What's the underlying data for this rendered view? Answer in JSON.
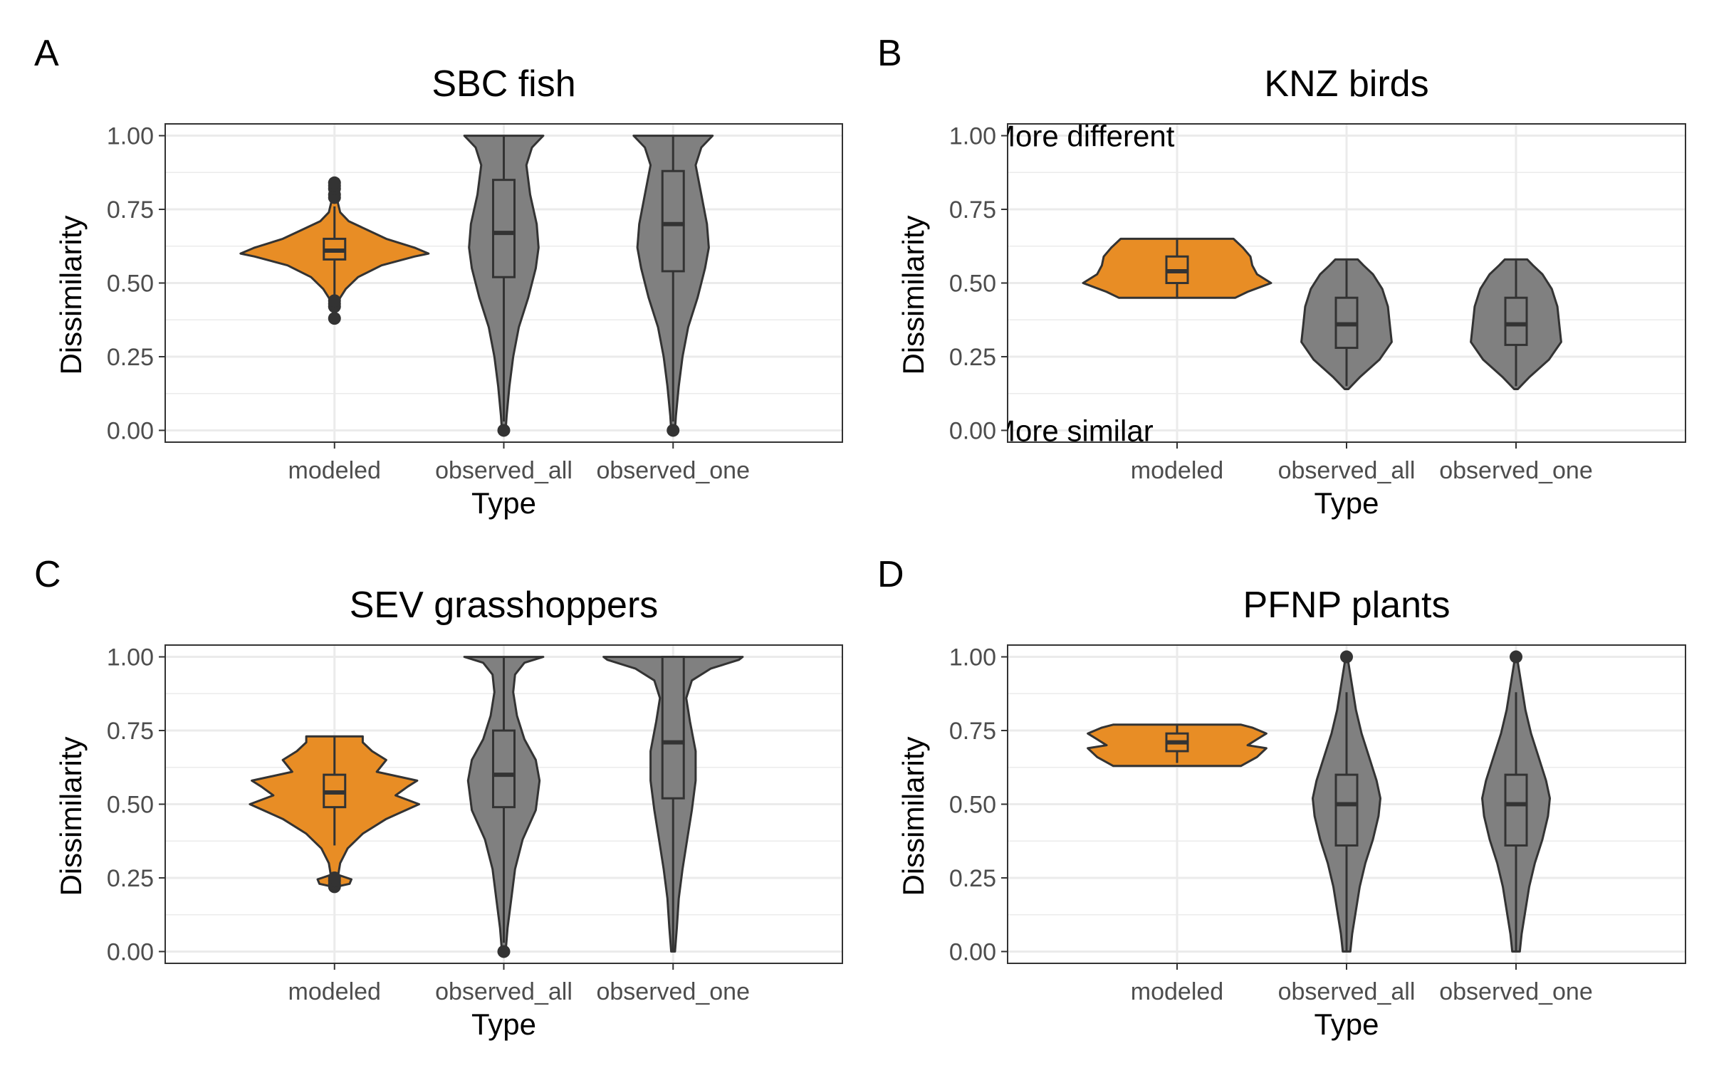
{
  "chart_data": [
    {
      "type": "violin",
      "tag": "A",
      "title": "SBC fish",
      "xlabel": "Type",
      "ylabel": "Dissimilarity",
      "ylim": [
        -0.04,
        1.04
      ],
      "yticks": [
        "0.00",
        "0.25",
        "0.50",
        "0.75",
        "1.00"
      ],
      "categories": [
        "modeled",
        "observed_all",
        "observed_one"
      ],
      "annotations": [],
      "grid": true,
      "colors": {
        "modeled": "#E88D25",
        "observed": "#808080",
        "outline": "#333333"
      },
      "series": [
        {
          "category": "modeled",
          "profile": [
            [
              0.38,
              0.0
            ],
            [
              0.42,
              0.02
            ],
            [
              0.45,
              0.06
            ],
            [
              0.48,
              0.12
            ],
            [
              0.52,
              0.25
            ],
            [
              0.56,
              0.5
            ],
            [
              0.59,
              0.85
            ],
            [
              0.6,
              1.0
            ],
            [
              0.62,
              0.85
            ],
            [
              0.65,
              0.55
            ],
            [
              0.68,
              0.35
            ],
            [
              0.71,
              0.15
            ],
            [
              0.74,
              0.06
            ],
            [
              0.78,
              0.03
            ],
            [
              0.82,
              0.02
            ],
            [
              0.84,
              0.0
            ]
          ],
          "box": {
            "q1": 0.58,
            "median": 0.61,
            "q3": 0.65,
            "wmin": 0.46,
            "wmax": 0.76
          },
          "outliers": [
            0.38,
            0.42,
            0.43,
            0.44,
            0.79,
            0.8,
            0.82,
            0.83,
            0.84
          ]
        },
        {
          "category": "observed_all",
          "profile": [
            [
              0.0,
              0.02
            ],
            [
              0.05,
              0.03
            ],
            [
              0.15,
              0.06
            ],
            [
              0.25,
              0.1
            ],
            [
              0.35,
              0.16
            ],
            [
              0.45,
              0.26
            ],
            [
              0.55,
              0.34
            ],
            [
              0.62,
              0.37
            ],
            [
              0.7,
              0.35
            ],
            [
              0.8,
              0.28
            ],
            [
              0.9,
              0.24
            ],
            [
              0.96,
              0.3
            ],
            [
              1.0,
              0.42
            ]
          ],
          "box": {
            "q1": 0.52,
            "median": 0.67,
            "q3": 0.85,
            "wmin": 0.03,
            "wmax": 1.0
          },
          "outliers": [
            0.0
          ]
        },
        {
          "category": "observed_one",
          "profile": [
            [
              0.0,
              0.02
            ],
            [
              0.05,
              0.03
            ],
            [
              0.15,
              0.06
            ],
            [
              0.25,
              0.1
            ],
            [
              0.35,
              0.16
            ],
            [
              0.45,
              0.26
            ],
            [
              0.55,
              0.34
            ],
            [
              0.62,
              0.38
            ],
            [
              0.7,
              0.36
            ],
            [
              0.8,
              0.3
            ],
            [
              0.9,
              0.24
            ],
            [
              0.96,
              0.3
            ],
            [
              1.0,
              0.42
            ]
          ],
          "box": {
            "q1": 0.54,
            "median": 0.7,
            "q3": 0.88,
            "wmin": 0.03,
            "wmax": 1.0
          },
          "outliers": [
            0.0
          ]
        }
      ]
    },
    {
      "type": "violin",
      "tag": "B",
      "title": "KNZ birds",
      "xlabel": "Type",
      "ylabel": "Dissimilarity",
      "ylim": [
        -0.04,
        1.04
      ],
      "yticks": [
        "0.00",
        "0.25",
        "0.50",
        "0.75",
        "1.00"
      ],
      "categories": [
        "modeled",
        "observed_all",
        "observed_one"
      ],
      "annotations": [
        {
          "text": "More different",
          "y": 1.0
        },
        {
          "text": "More similar",
          "y": 0.0
        }
      ],
      "grid": true,
      "colors": {
        "modeled": "#E88D25",
        "observed": "#808080",
        "outline": "#333333"
      },
      "series": [
        {
          "category": "modeled",
          "profile": [
            [
              0.45,
              0.62
            ],
            [
              0.47,
              0.75
            ],
            [
              0.5,
              1.0
            ],
            [
              0.53,
              0.85
            ],
            [
              0.56,
              0.8
            ],
            [
              0.59,
              0.78
            ],
            [
              0.62,
              0.7
            ],
            [
              0.65,
              0.6
            ]
          ],
          "box": {
            "q1": 0.5,
            "median": 0.54,
            "q3": 0.59,
            "wmin": 0.45,
            "wmax": 0.65
          },
          "outliers": []
        },
        {
          "category": "observed_all",
          "profile": [
            [
              0.14,
              0.02
            ],
            [
              0.18,
              0.14
            ],
            [
              0.24,
              0.35
            ],
            [
              0.3,
              0.48
            ],
            [
              0.36,
              0.46
            ],
            [
              0.42,
              0.44
            ],
            [
              0.48,
              0.38
            ],
            [
              0.53,
              0.28
            ],
            [
              0.56,
              0.18
            ],
            [
              0.58,
              0.12
            ]
          ],
          "box": {
            "q1": 0.28,
            "median": 0.36,
            "q3": 0.45,
            "wmin": 0.15,
            "wmax": 0.58
          },
          "outliers": []
        },
        {
          "category": "observed_one",
          "profile": [
            [
              0.14,
              0.02
            ],
            [
              0.18,
              0.14
            ],
            [
              0.24,
              0.35
            ],
            [
              0.3,
              0.48
            ],
            [
              0.36,
              0.46
            ],
            [
              0.42,
              0.44
            ],
            [
              0.48,
              0.38
            ],
            [
              0.53,
              0.28
            ],
            [
              0.56,
              0.18
            ],
            [
              0.58,
              0.12
            ]
          ],
          "box": {
            "q1": 0.29,
            "median": 0.36,
            "q3": 0.45,
            "wmin": 0.15,
            "wmax": 0.58
          },
          "outliers": []
        }
      ]
    },
    {
      "type": "violin",
      "tag": "C",
      "title": "SEV grasshoppers",
      "xlabel": "Type",
      "ylabel": "Dissimilarity",
      "ylim": [
        -0.04,
        1.04
      ],
      "yticks": [
        "0.00",
        "0.25",
        "0.50",
        "0.75",
        "1.00"
      ],
      "categories": [
        "modeled",
        "observed_all",
        "observed_one"
      ],
      "annotations": [],
      "grid": true,
      "colors": {
        "modeled": "#E88D25",
        "observed": "#808080",
        "outline": "#333333"
      },
      "series": [
        {
          "category": "modeled",
          "profile": [
            [
              0.22,
              0.02
            ],
            [
              0.23,
              0.16
            ],
            [
              0.245,
              0.18
            ],
            [
              0.26,
              0.04
            ],
            [
              0.3,
              0.06
            ],
            [
              0.35,
              0.14
            ],
            [
              0.4,
              0.3
            ],
            [
              0.45,
              0.55
            ],
            [
              0.5,
              0.9
            ],
            [
              0.53,
              0.65
            ],
            [
              0.56,
              0.78
            ],
            [
              0.58,
              0.88
            ],
            [
              0.61,
              0.45
            ],
            [
              0.65,
              0.55
            ],
            [
              0.68,
              0.4
            ],
            [
              0.71,
              0.3
            ],
            [
              0.73,
              0.3
            ]
          ],
          "box": {
            "q1": 0.49,
            "median": 0.54,
            "q3": 0.6,
            "wmin": 0.36,
            "wmax": 0.73
          },
          "outliers": [
            0.22,
            0.23,
            0.24,
            0.25
          ]
        },
        {
          "category": "observed_all",
          "profile": [
            [
              0.0,
              0.02
            ],
            [
              0.08,
              0.04
            ],
            [
              0.18,
              0.08
            ],
            [
              0.28,
              0.12
            ],
            [
              0.38,
              0.2
            ],
            [
              0.48,
              0.34
            ],
            [
              0.58,
              0.38
            ],
            [
              0.65,
              0.34
            ],
            [
              0.72,
              0.22
            ],
            [
              0.8,
              0.14
            ],
            [
              0.88,
              0.1
            ],
            [
              0.94,
              0.12
            ],
            [
              0.98,
              0.22
            ],
            [
              1.0,
              0.42
            ]
          ],
          "box": {
            "q1": 0.49,
            "median": 0.6,
            "q3": 0.75,
            "wmin": 0.03,
            "wmax": 1.0
          },
          "outliers": [
            0.0
          ]
        },
        {
          "category": "observed_one",
          "profile": [
            [
              0.0,
              0.02
            ],
            [
              0.08,
              0.04
            ],
            [
              0.18,
              0.06
            ],
            [
              0.28,
              0.1
            ],
            [
              0.38,
              0.15
            ],
            [
              0.48,
              0.2
            ],
            [
              0.58,
              0.24
            ],
            [
              0.68,
              0.24
            ],
            [
              0.78,
              0.18
            ],
            [
              0.86,
              0.14
            ],
            [
              0.92,
              0.2
            ],
            [
              0.96,
              0.4
            ],
            [
              0.99,
              0.7
            ],
            [
              1.0,
              0.74
            ]
          ],
          "box": {
            "q1": 0.52,
            "median": 0.71,
            "q3": 1.0,
            "wmin": 0.0,
            "wmax": 1.0
          },
          "outliers": []
        }
      ]
    },
    {
      "type": "violin",
      "tag": "D",
      "title": "PFNP plants",
      "xlabel": "Type",
      "ylabel": "Dissimilarity",
      "ylim": [
        -0.04,
        1.04
      ],
      "yticks": [
        "0.00",
        "0.25",
        "0.50",
        "0.75",
        "1.00"
      ],
      "categories": [
        "modeled",
        "observed_all",
        "observed_one"
      ],
      "annotations": [],
      "grid": true,
      "colors": {
        "modeled": "#E88D25",
        "observed": "#808080",
        "outline": "#333333"
      },
      "series": [
        {
          "category": "modeled",
          "profile": [
            [
              0.63,
              0.68
            ],
            [
              0.66,
              0.85
            ],
            [
              0.69,
              0.95
            ],
            [
              0.7,
              0.75
            ],
            [
              0.72,
              0.85
            ],
            [
              0.74,
              0.95
            ],
            [
              0.76,
              0.8
            ],
            [
              0.77,
              0.68
            ]
          ],
          "box": {
            "q1": 0.68,
            "median": 0.71,
            "q3": 0.74,
            "wmin": 0.64,
            "wmax": 0.77
          },
          "outliers": []
        },
        {
          "category": "observed_all",
          "profile": [
            [
              0.0,
              0.04
            ],
            [
              0.06,
              0.06
            ],
            [
              0.14,
              0.1
            ],
            [
              0.22,
              0.14
            ],
            [
              0.3,
              0.2
            ],
            [
              0.38,
              0.28
            ],
            [
              0.46,
              0.34
            ],
            [
              0.52,
              0.36
            ],
            [
              0.58,
              0.32
            ],
            [
              0.66,
              0.24
            ],
            [
              0.74,
              0.16
            ],
            [
              0.82,
              0.1
            ],
            [
              0.9,
              0.06
            ],
            [
              0.98,
              0.02
            ],
            [
              1.0,
              0.0
            ]
          ],
          "box": {
            "q1": 0.36,
            "median": 0.5,
            "q3": 0.6,
            "wmin": 0.0,
            "wmax": 0.88
          },
          "outliers": [
            1.0
          ]
        },
        {
          "category": "observed_one",
          "profile": [
            [
              0.0,
              0.04
            ],
            [
              0.06,
              0.06
            ],
            [
              0.14,
              0.1
            ],
            [
              0.22,
              0.14
            ],
            [
              0.3,
              0.2
            ],
            [
              0.38,
              0.28
            ],
            [
              0.46,
              0.34
            ],
            [
              0.52,
              0.36
            ],
            [
              0.58,
              0.32
            ],
            [
              0.66,
              0.24
            ],
            [
              0.74,
              0.16
            ],
            [
              0.82,
              0.1
            ],
            [
              0.9,
              0.06
            ],
            [
              0.98,
              0.02
            ],
            [
              1.0,
              0.0
            ]
          ],
          "box": {
            "q1": 0.36,
            "median": 0.5,
            "q3": 0.6,
            "wmin": 0.0,
            "wmax": 0.88
          },
          "outliers": [
            1.0
          ]
        }
      ]
    }
  ]
}
